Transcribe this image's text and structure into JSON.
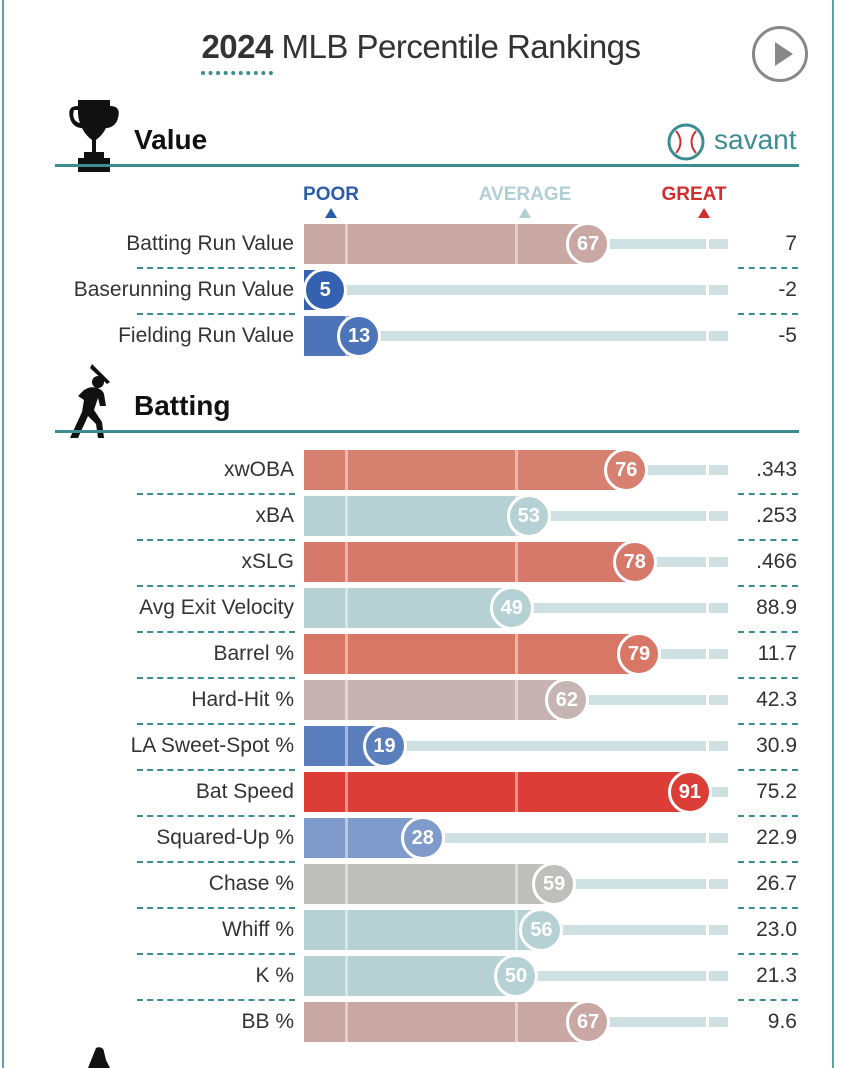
{
  "header": {
    "year": "2024",
    "title_rest": " MLB Percentile Rankings"
  },
  "brand": {
    "logo_text": "savant"
  },
  "sections": {
    "value": {
      "title": "Value"
    },
    "batting": {
      "title": "Batting"
    }
  },
  "scale": {
    "poor": "POOR",
    "average": "AVERAGE",
    "great": "GREAT"
  },
  "colors": {
    "accent": "#3c8d93",
    "poor": "#2a5caa",
    "average": "#b0cfd4",
    "great": "#d22d2d"
  },
  "chart_data": {
    "type": "bar",
    "title": "2024 MLB Percentile Rankings",
    "xlim": [
      0,
      100
    ],
    "value_rows": [
      {
        "label": "Batting Run Value",
        "percentile": 67,
        "stat": "7",
        "color": "#c9a8a4"
      },
      {
        "label": "Baserunning Run Value",
        "percentile": 5,
        "stat": "-2",
        "color": "#3562b0"
      },
      {
        "label": "Fielding Run Value",
        "percentile": 13,
        "stat": "-5",
        "color": "#4d74b8"
      }
    ],
    "batting_rows": [
      {
        "label": "xwOBA",
        "percentile": 76,
        "stat": ".343",
        "color": "#d6806f"
      },
      {
        "label": "xBA",
        "percentile": 53,
        "stat": ".253",
        "color": "#b6d1d4"
      },
      {
        "label": "xSLG",
        "percentile": 78,
        "stat": ".466",
        "color": "#d6786a"
      },
      {
        "label": "Avg Exit Velocity",
        "percentile": 49,
        "stat": "88.9",
        "color": "#b6d1d4"
      },
      {
        "label": "Barrel %",
        "percentile": 79,
        "stat": "11.7",
        "color": "#d97766"
      },
      {
        "label": "Hard-Hit %",
        "percentile": 62,
        "stat": "42.3",
        "color": "#c6b4b2"
      },
      {
        "label": "LA Sweet-Spot %",
        "percentile": 19,
        "stat": "30.9",
        "color": "#5b7fbd"
      },
      {
        "label": "Bat Speed",
        "percentile": 91,
        "stat": "75.2",
        "color": "#dc3d36"
      },
      {
        "label": "Squared-Up %",
        "percentile": 28,
        "stat": "22.9",
        "color": "#7f9bcb"
      },
      {
        "label": "Chase %",
        "percentile": 59,
        "stat": "26.7",
        "color": "#bebebb"
      },
      {
        "label": "Whiff %",
        "percentile": 56,
        "stat": "23.0",
        "color": "#b6d1d4"
      },
      {
        "label": "K %",
        "percentile": 50,
        "stat": "21.3",
        "color": "#b6d1d4"
      },
      {
        "label": "BB %",
        "percentile": 67,
        "stat": "9.6",
        "color": "#c9a8a4"
      }
    ]
  }
}
